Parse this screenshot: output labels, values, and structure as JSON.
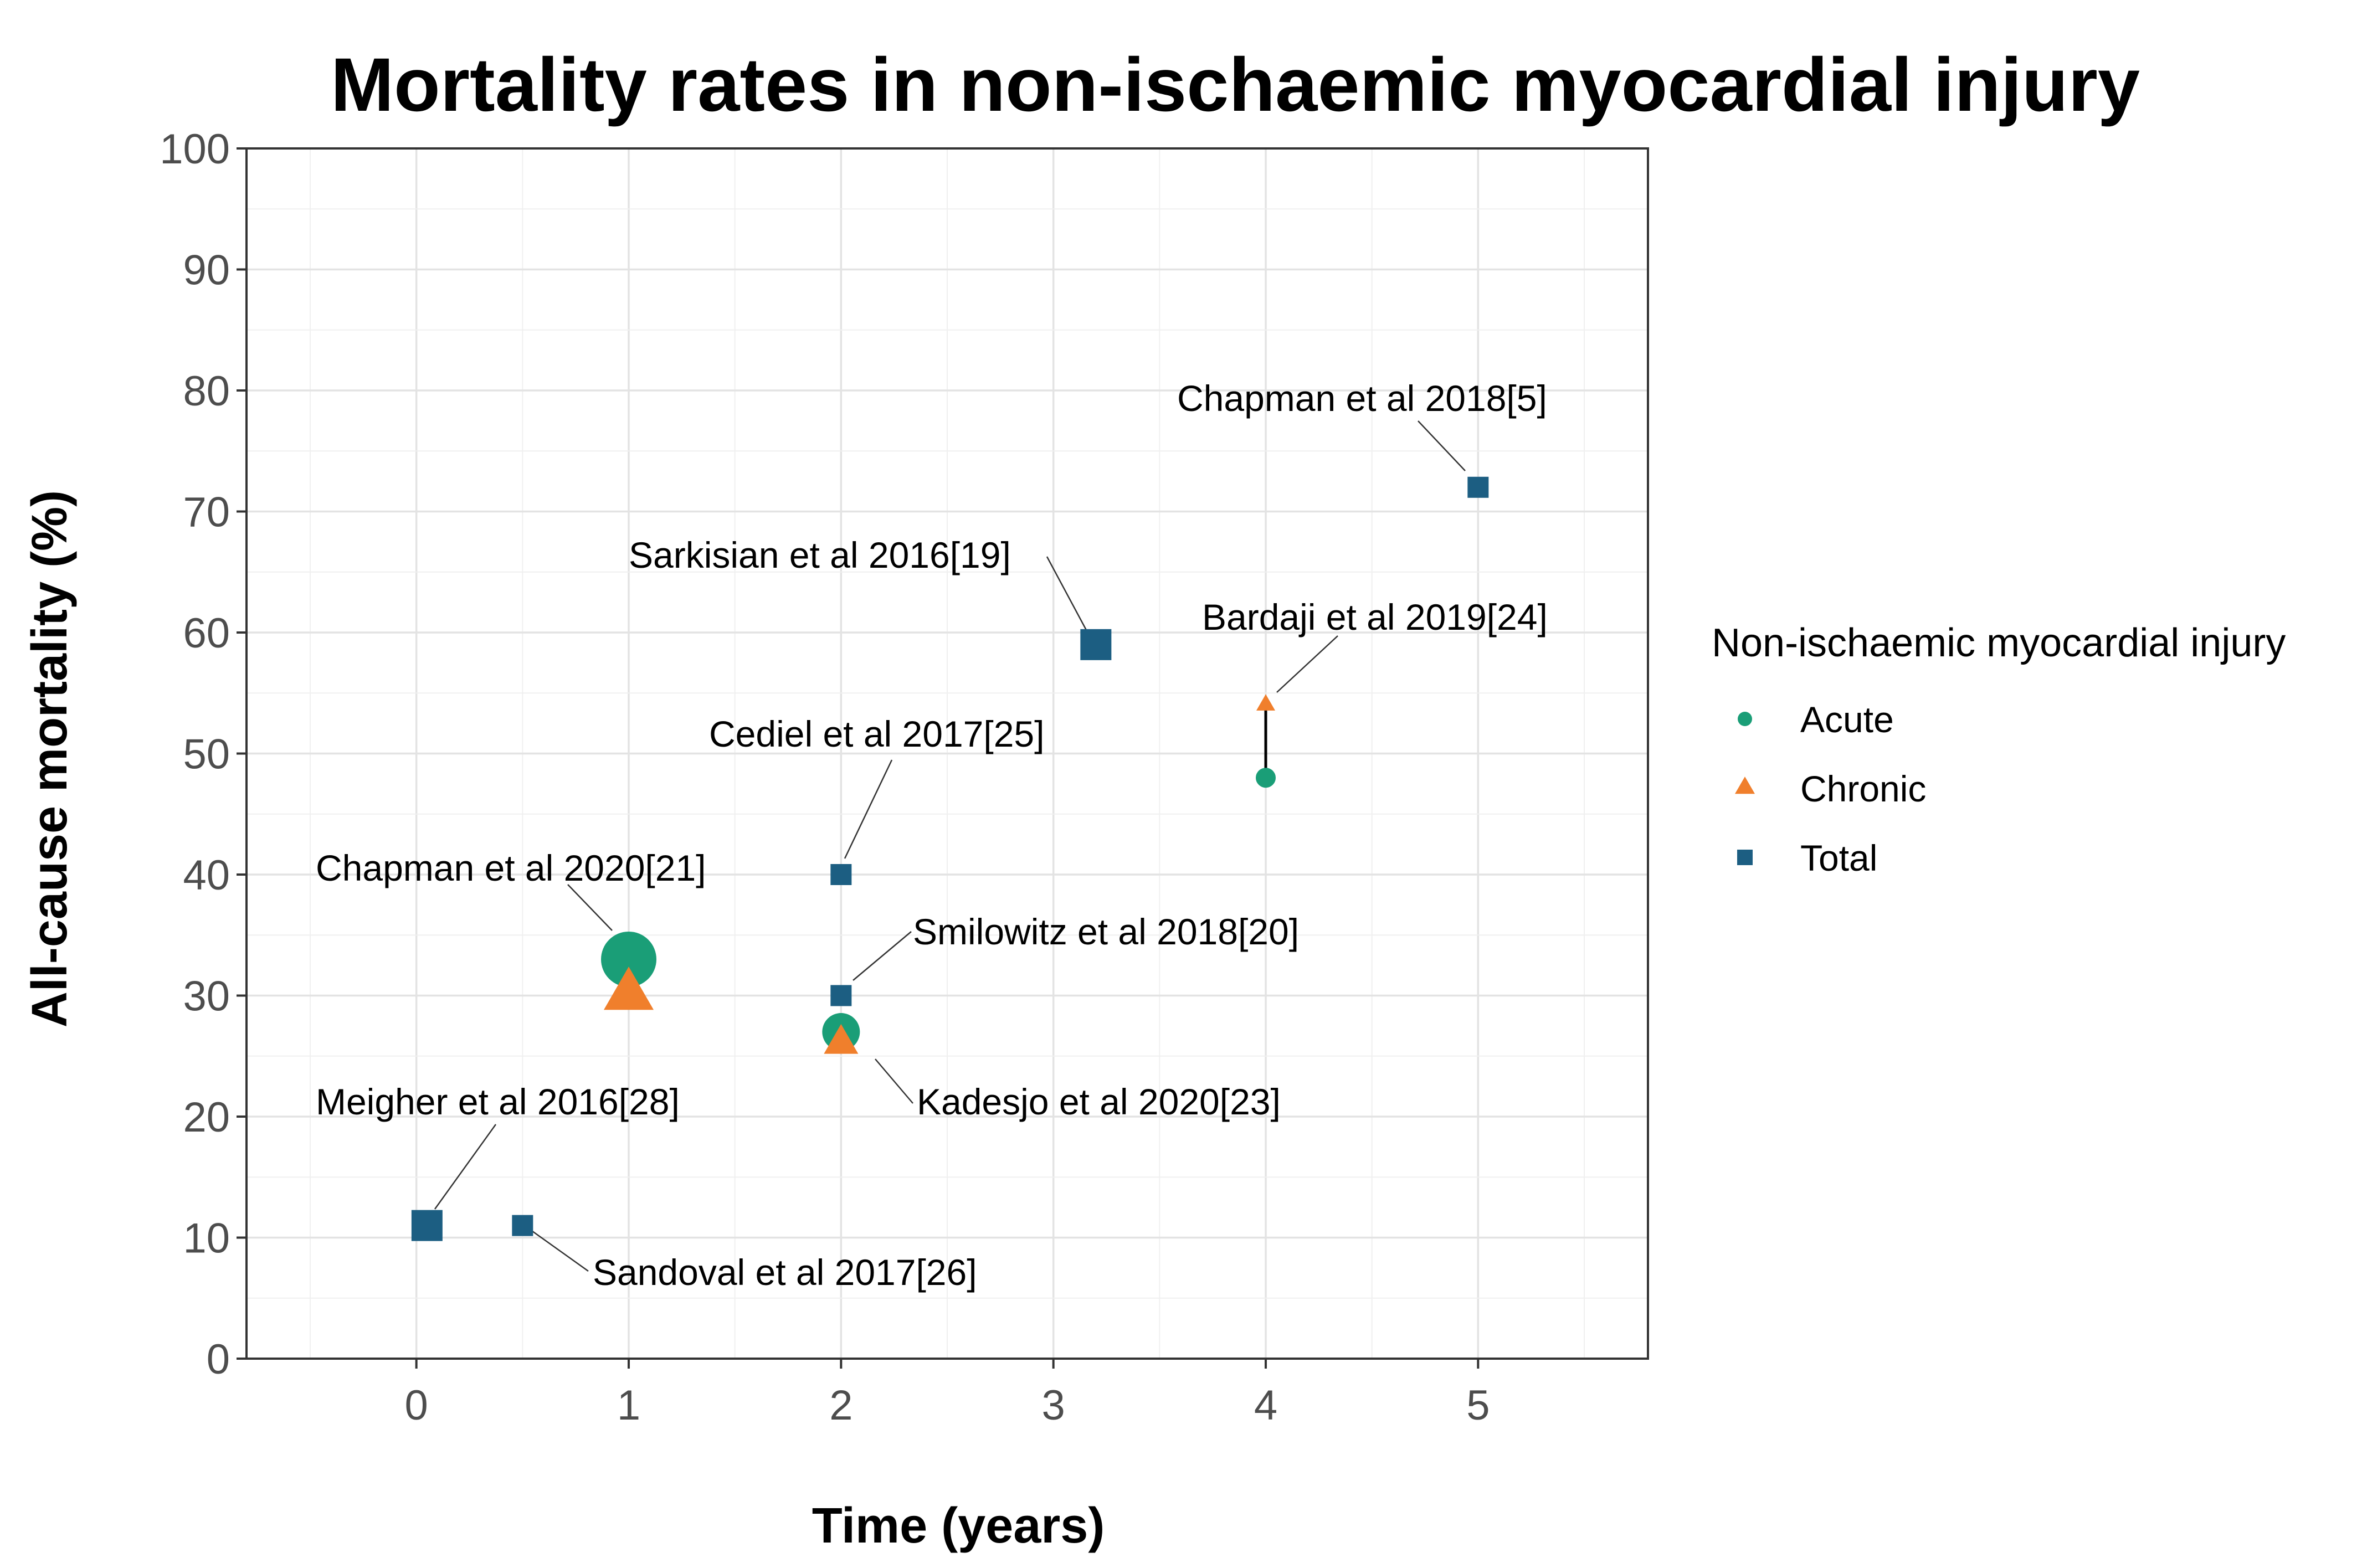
{
  "chart_data": {
    "type": "scatter",
    "title": "Mortality rates in non-ischaemic myocardial injury",
    "xlabel": "Time (years)",
    "ylabel": "All-cause mortality (%)",
    "xlim": [
      -0.8,
      5.8
    ],
    "ylim": [
      0,
      100
    ],
    "xticks": [
      0,
      1,
      2,
      3,
      4,
      5
    ],
    "yticks": [
      0,
      10,
      20,
      30,
      40,
      50,
      60,
      70,
      80,
      90,
      100
    ],
    "grid": true,
    "legend": {
      "title": "Non-ischaemic myocardial injury",
      "position": "right",
      "entries": [
        {
          "name": "Acute",
          "color": "#1a9e77",
          "shape": "circle"
        },
        {
          "name": "Chronic",
          "color": "#f07f2c",
          "shape": "triangle"
        },
        {
          "name": "Total",
          "color": "#1c5e82",
          "shape": "square"
        }
      ]
    },
    "series": [
      {
        "name": "Acute",
        "color": "#1a9e77",
        "shape": "circle",
        "points": [
          {
            "x": 1,
            "y": 33,
            "size": "large"
          },
          {
            "x": 2,
            "y": 27,
            "size": "medium"
          },
          {
            "x": 4,
            "y": 48,
            "size": "small"
          }
        ]
      },
      {
        "name": "Chronic",
        "color": "#f07f2c",
        "shape": "triangle",
        "points": [
          {
            "x": 1,
            "y": 30,
            "size": "large"
          },
          {
            "x": 2,
            "y": 26,
            "size": "medium"
          },
          {
            "x": 4,
            "y": 54,
            "size": "small"
          }
        ]
      },
      {
        "name": "Total",
        "color": "#1c5e82",
        "shape": "square",
        "points": [
          {
            "x": 0.05,
            "y": 11,
            "size": "medium"
          },
          {
            "x": 0.5,
            "y": 11,
            "size": "small"
          },
          {
            "x": 2,
            "y": 40,
            "size": "small"
          },
          {
            "x": 2,
            "y": 30,
            "size": "small"
          },
          {
            "x": 3.2,
            "y": 59,
            "size": "medium"
          },
          {
            "x": 5,
            "y": 72,
            "size": "small"
          }
        ]
      }
    ],
    "connectors": [
      {
        "x": 4,
        "y_from": 48,
        "y_to": 54
      }
    ],
    "annotations": [
      {
        "text": "Chapman et al 2018[5]",
        "x": 5,
        "y": 72
      },
      {
        "text": "Sarkisian et al 2016[19]",
        "x": 3.2,
        "y": 59
      },
      {
        "text": "Bardaji et al 2019[24]",
        "x": 4,
        "y": 54
      },
      {
        "text": "Cediel et al 2017[25]",
        "x": 2,
        "y": 40
      },
      {
        "text": "Chapman et al 2020[21]",
        "x": 1,
        "y": 33
      },
      {
        "text": "Smilowitz et al 2018[20]",
        "x": 2,
        "y": 30
      },
      {
        "text": "Kadesjo et al 2020[23]",
        "x": 2,
        "y": 26
      },
      {
        "text": "Meigher et al 2016[28]",
        "x": 0.05,
        "y": 11
      },
      {
        "text": "Sandoval et al 2017[26]",
        "x": 0.5,
        "y": 11
      }
    ]
  }
}
